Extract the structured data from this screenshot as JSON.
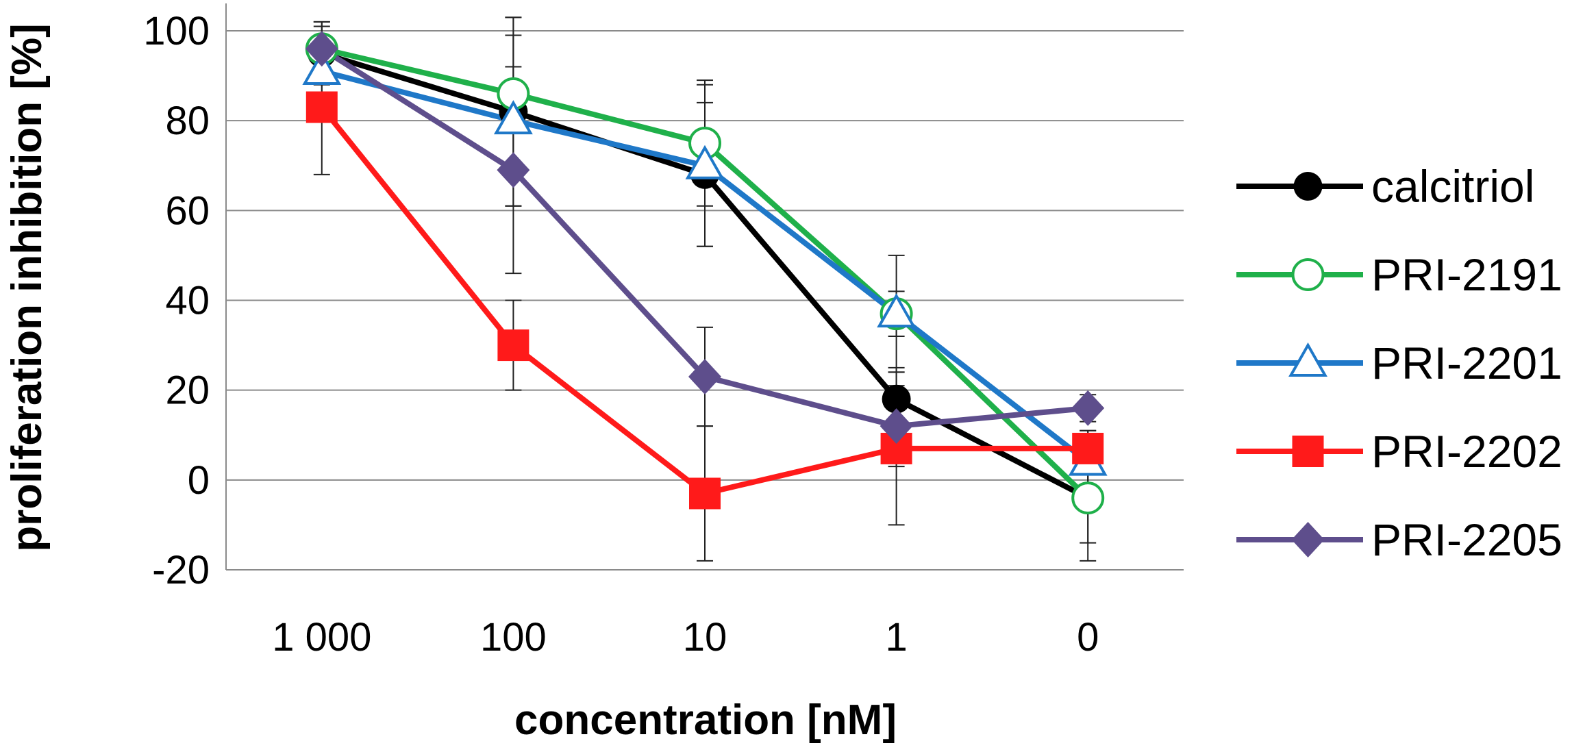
{
  "chart_data": {
    "type": "line",
    "xlabel": "concentration [nM]",
    "ylabel": "proliferation inhibition [%]",
    "categories": [
      "1 000",
      "100",
      "10",
      "1",
      "0"
    ],
    "ylim": [
      -20,
      100
    ],
    "yticks": [
      -20,
      0,
      20,
      40,
      60,
      80,
      100
    ],
    "grid": true,
    "legend_position": "right",
    "series": [
      {
        "name": "calcitriol",
        "color": "#000000",
        "marker": "circle",
        "filled": true,
        "values": [
          95,
          82,
          68,
          18,
          -4
        ],
        "errors": [
          7,
          21,
          16,
          7,
          14
        ]
      },
      {
        "name": "PRI-2191",
        "color": "#1fb04a",
        "marker": "circle",
        "filled": false,
        "values": [
          96,
          86,
          75,
          37,
          -4
        ],
        "errors": [
          6,
          17,
          14,
          13,
          10
        ]
      },
      {
        "name": "PRI-2201",
        "color": "#1f78c8",
        "marker": "triangle",
        "filled": false,
        "values": [
          91,
          80,
          70,
          37,
          4
        ],
        "errors": [
          6,
          19,
          18,
          5,
          7
        ]
      },
      {
        "name": "PRI-2202",
        "color": "#ff1a1a",
        "marker": "square",
        "filled": true,
        "values": [
          83,
          30,
          -3,
          7,
          7
        ],
        "errors": [
          15,
          10,
          15,
          17,
          4
        ]
      },
      {
        "name": "PRI-2205",
        "color": "#5e4e8c",
        "marker": "diamond",
        "filled": true,
        "values": [
          96,
          69,
          23,
          12,
          16
        ],
        "errors": [
          5,
          23,
          11,
          9,
          3
        ]
      }
    ]
  }
}
